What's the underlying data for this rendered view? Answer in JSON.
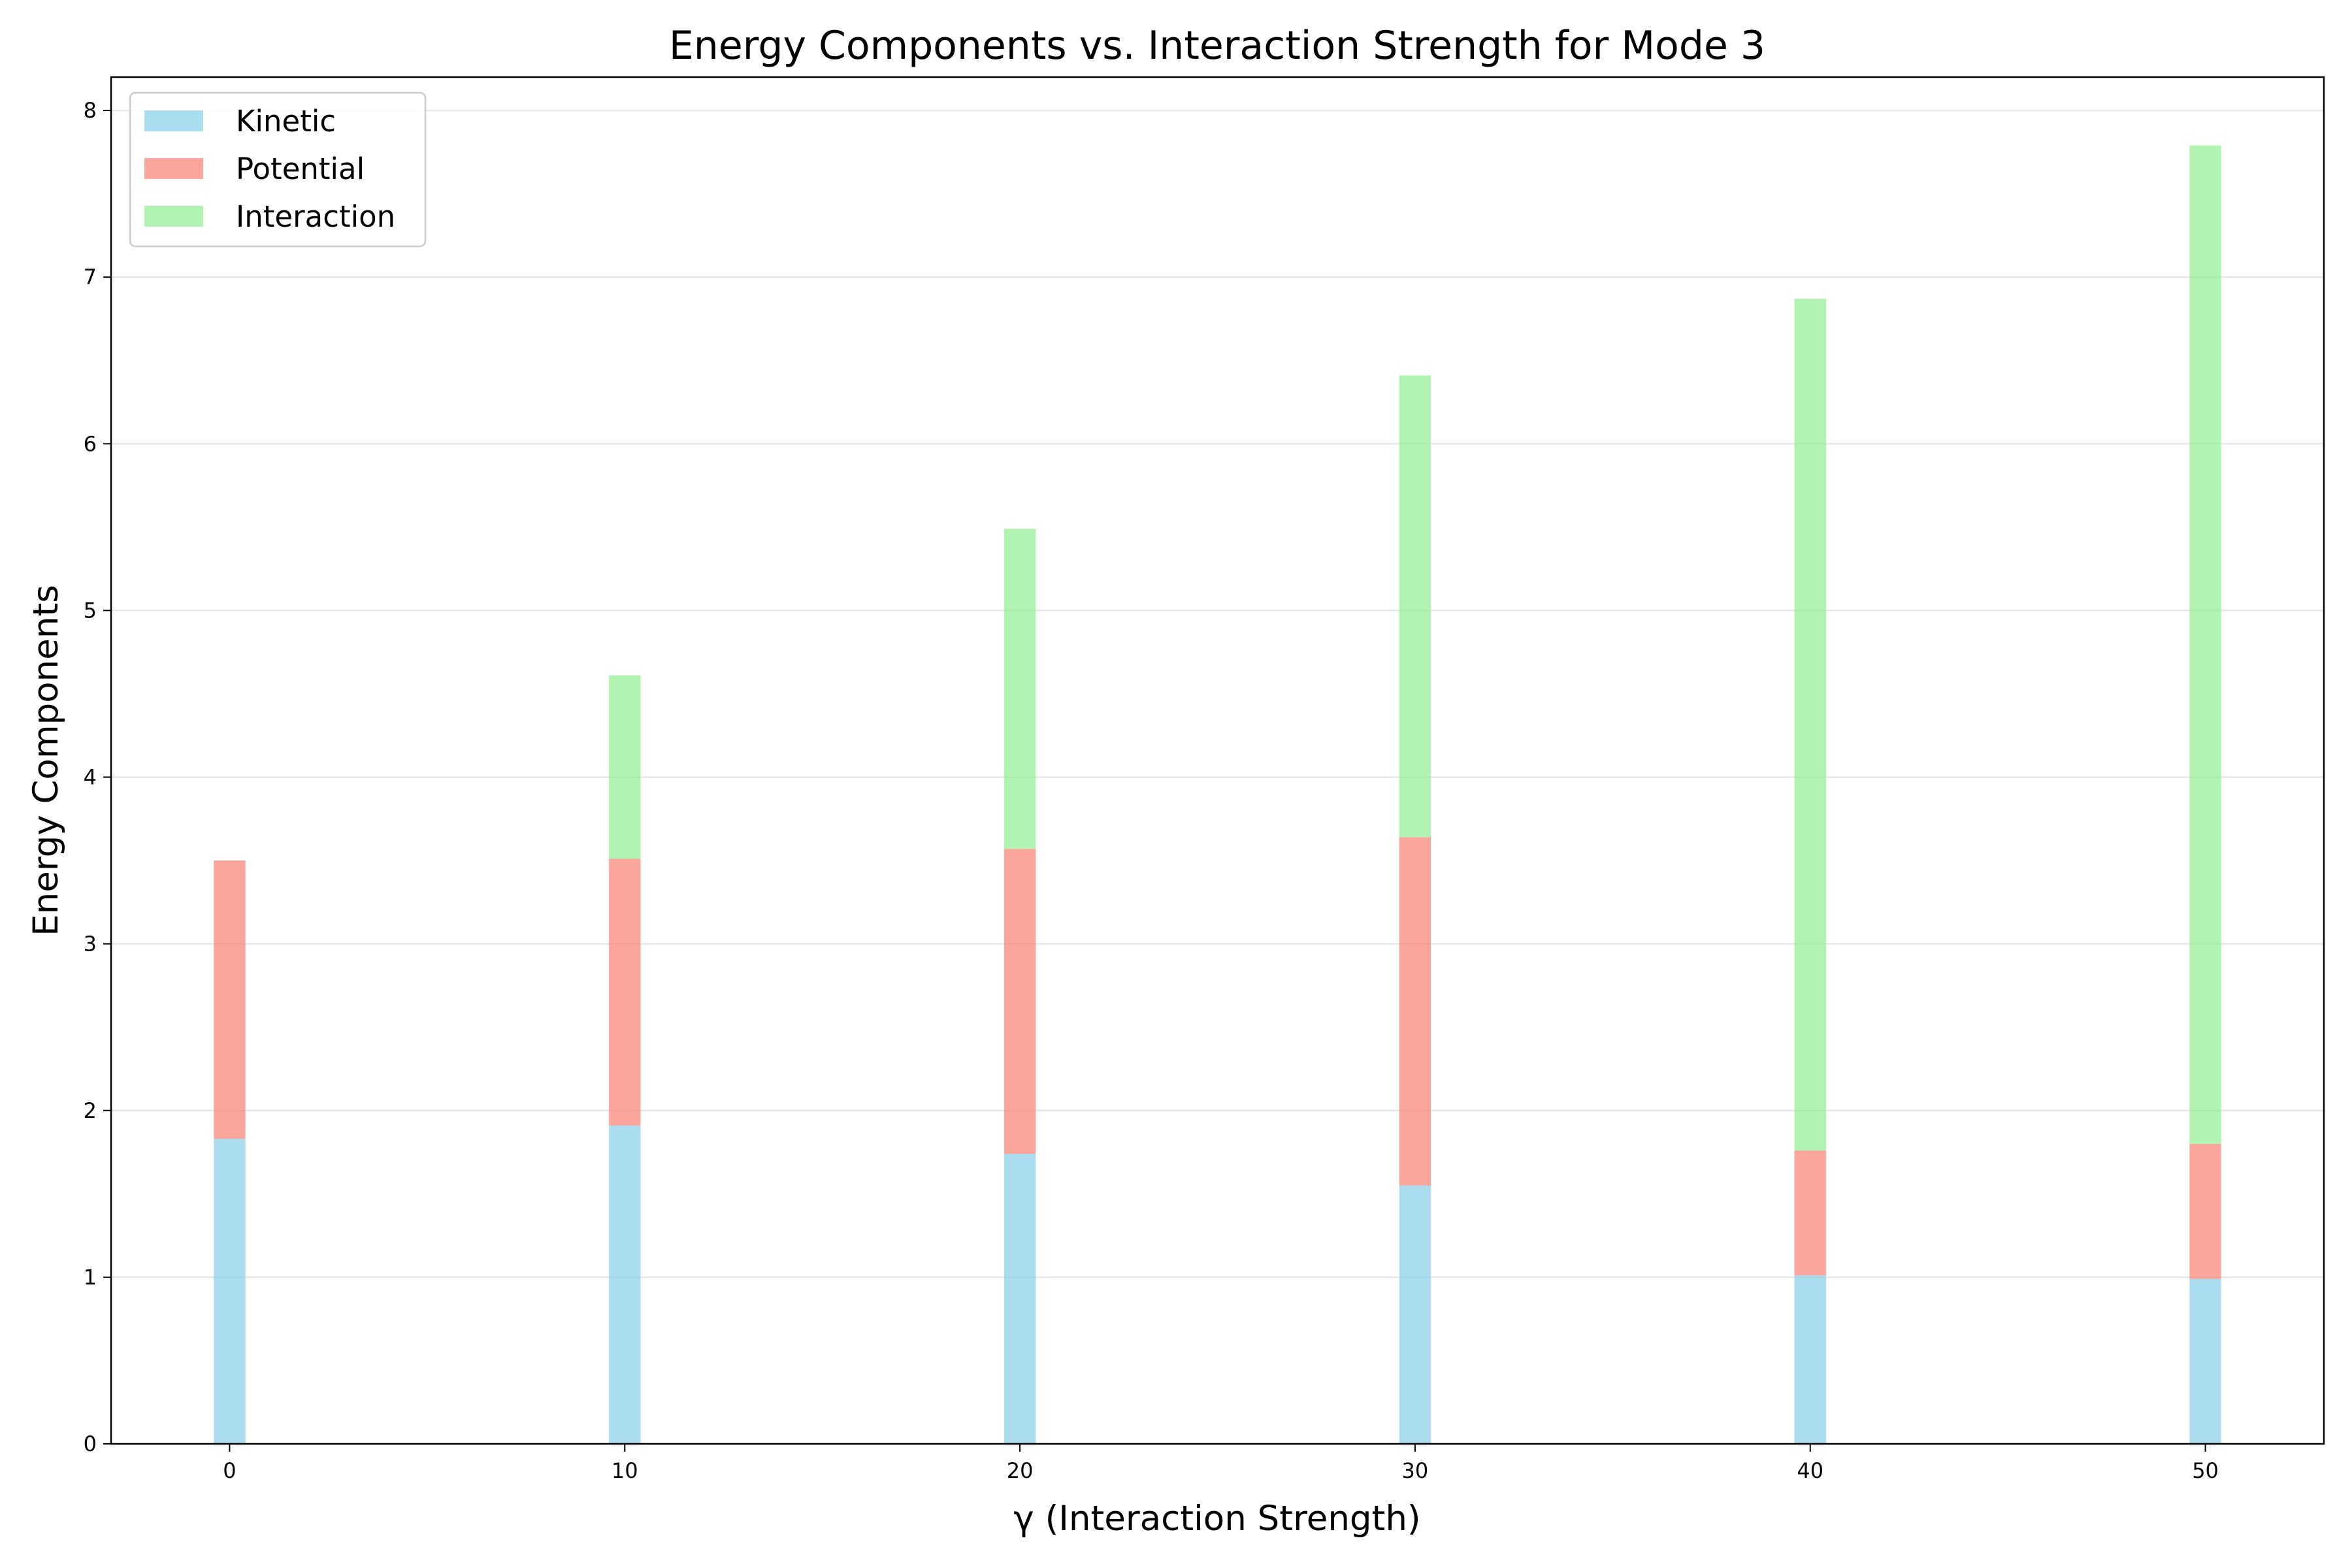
{
  "chart_data": {
    "type": "bar",
    "stacked": true,
    "title": "Energy Components vs. Interaction Strength for Mode 3",
    "xlabel": "γ (Interaction Strength)",
    "ylabel": "Energy Components",
    "x": [
      0,
      10,
      20,
      30,
      40,
      50
    ],
    "xticks": [
      "0",
      "10",
      "20",
      "30",
      "40",
      "50"
    ],
    "yticks": [
      "0",
      "1",
      "2",
      "3",
      "4",
      "5",
      "6",
      "7",
      "8"
    ],
    "xlim": [
      -3,
      53
    ],
    "ylim": [
      0,
      8.2
    ],
    "bar_width": 0.8,
    "grid": "y",
    "legend_position": "upper-left",
    "series": [
      {
        "name": "Kinetic",
        "color": "#87CEEB",
        "values": [
          1.83,
          1.91,
          1.74,
          1.55,
          1.01,
          0.99
        ]
      },
      {
        "name": "Potential",
        "color": "#FA8072",
        "values": [
          1.67,
          1.6,
          1.83,
          2.09,
          0.75,
          0.81
        ]
      },
      {
        "name": "Interaction",
        "color": "#90EE90",
        "values": [
          0.0,
          1.1,
          1.92,
          2.77,
          5.11,
          5.99
        ]
      }
    ]
  }
}
